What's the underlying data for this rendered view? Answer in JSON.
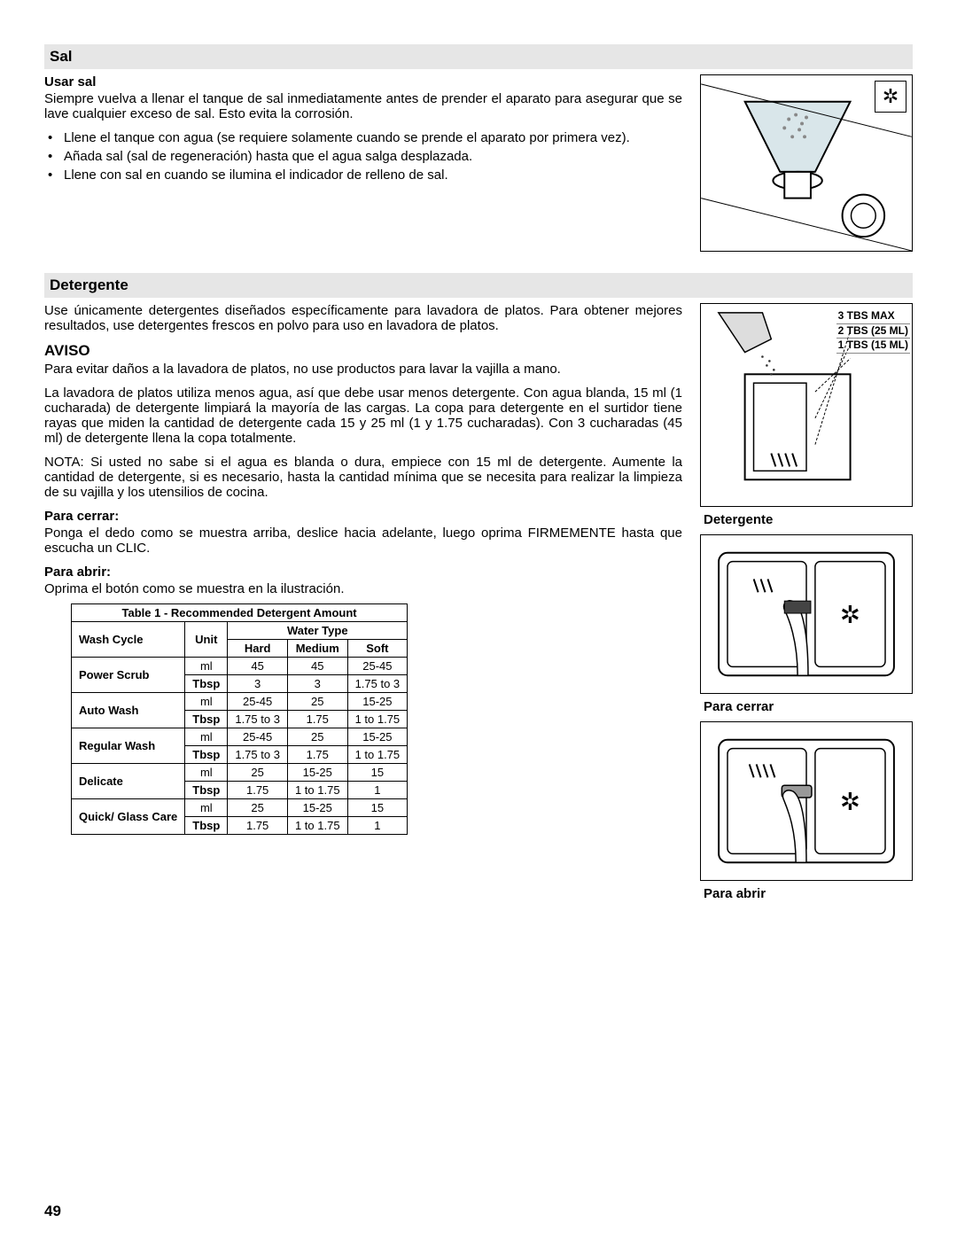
{
  "page_number": "49",
  "sal": {
    "heading": "Sal",
    "sub": "Usar sal",
    "intro": "Siempre vuelva a llenar el tanque de sal inmediatamente antes de prender el aparato para asegurar que se lave cualquier exceso de sal. Esto evita la corrosión.",
    "bullets": [
      "Llene el tanque con agua (se requiere solamente cuando se prende el aparato por primera vez).",
      "Añada sal (sal de regeneración) hasta que el agua salga desplazada.",
      "Llene con sal en cuando se ilumina el indicador de relleno de sal."
    ]
  },
  "detergente": {
    "heading": "Detergente",
    "intro": "Use únicamente detergentes diseñados específicamente para lavadora de platos. Para obtener mejores resultados, use detergentes frescos en polvo para uso en lavadora de platos.",
    "aviso_head": "AVISO",
    "aviso_p1": "Para evitar daños a la lavadora de platos, no use productos para lavar la vajilla a mano.",
    "aviso_p2": "La lavadora de platos utiliza menos agua, así que debe usar menos detergente. Con agua blanda, 15 ml (1 cucharada) de detergente limpiará la mayoría de las cargas. La copa para detergente en el surtidor tiene rayas que miden la cantidad de detergente cada 15 y 25 ml (1 y 1.75 cucharadas).  Con 3 cucharadas (45 ml) de detergente llena la copa totalmente.",
    "nota": "NOTA: Si usted no sabe si el agua es blanda o dura, empiece con 15 ml de detergente. Aumente la cantidad de detergente, si es necesario, hasta la cantidad mínima que se necesita para realizar la limpieza de su vajilla y los utensilios de cocina.",
    "cerrar_head": "Para cerrar:",
    "cerrar_text": "Ponga el dedo como se muestra arriba, deslice hacia adelante, luego oprima FIRMEMENTE hasta que escucha un CLIC.",
    "abrir_head": "Para abrir:",
    "abrir_text": "Oprima el botón como se muestra en la ilustración.",
    "fig_detergente_caption": "Detergente",
    "fig_cerrar_caption": "Para cerrar",
    "fig_abrir_caption": "Para abrir",
    "levels": {
      "l3": "3 TBS MAX",
      "l2": "2 TBS (25 ML)",
      "l1": "1 TBS (15 ML)"
    }
  },
  "table": {
    "title": "Table 1 - Recommended Detergent Amount",
    "water_type": "Water Type",
    "cols": {
      "cycle": "Wash Cycle",
      "unit": "Unit",
      "hard": "Hard",
      "medium": "Medium",
      "soft": "Soft"
    },
    "rows": [
      {
        "cycle": "Power Scrub",
        "ml": [
          "45",
          "45",
          "25-45"
        ],
        "tbsp": [
          "3",
          "3",
          "1.75 to 3"
        ]
      },
      {
        "cycle": "Auto Wash",
        "ml": [
          "25-45",
          "25",
          "15-25"
        ],
        "tbsp": [
          "1.75 to 3",
          "1.75",
          "1 to 1.75"
        ]
      },
      {
        "cycle": "Regular Wash",
        "ml": [
          "25-45",
          "25",
          "15-25"
        ],
        "tbsp": [
          "1.75 to 3",
          "1.75",
          "1 to 1.75"
        ]
      },
      {
        "cycle": "Delicate",
        "ml": [
          "25",
          "15-25",
          "15"
        ],
        "tbsp": [
          "1.75",
          "1 to 1.75",
          "1"
        ]
      },
      {
        "cycle": "Quick/ Glass Care",
        "ml": [
          "25",
          "15-25",
          "15"
        ],
        "tbsp": [
          "1.75",
          "1 to 1.75",
          "1"
        ]
      }
    ],
    "unit_ml": "ml",
    "unit_tbsp": "Tbsp"
  },
  "colors": {
    "section_bg": "#e6e6e6",
    "border": "#000000",
    "text": "#000000"
  }
}
